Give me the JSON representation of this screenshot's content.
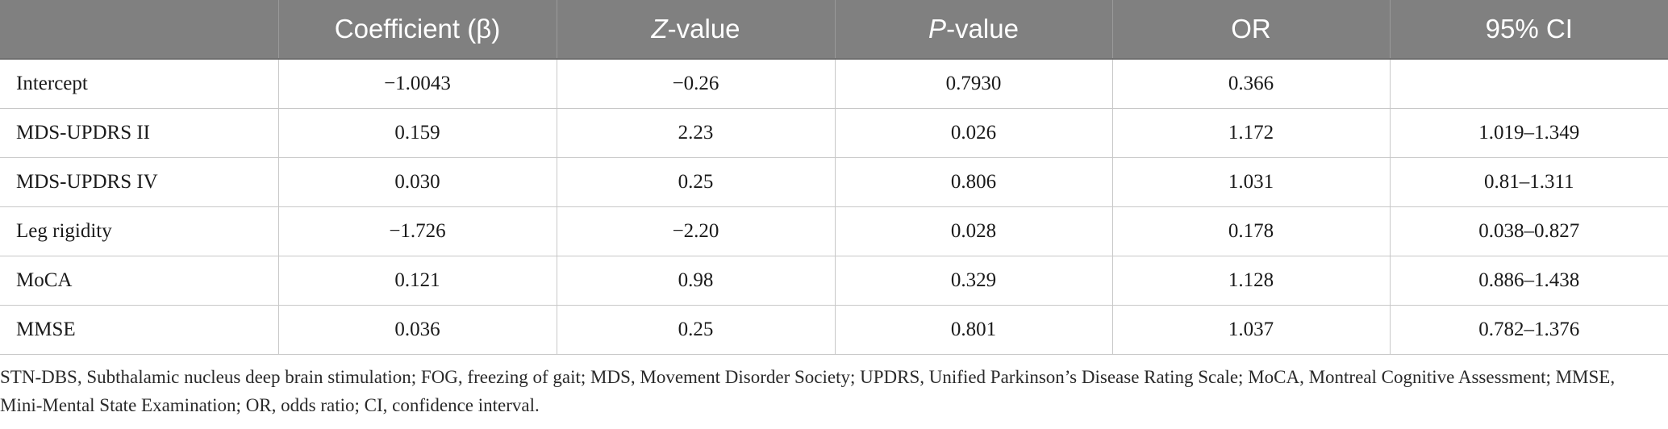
{
  "table": {
    "headers": [
      {
        "pre": "Coefficient (β)",
        "ital": "",
        "post": ""
      },
      {
        "pre": "",
        "ital": "Z",
        "post": "-value"
      },
      {
        "pre": "",
        "ital": "P",
        "post": "-value"
      },
      {
        "pre": "OR",
        "ital": "",
        "post": ""
      },
      {
        "pre": "95% CI",
        "ital": "",
        "post": ""
      }
    ],
    "rows": [
      [
        "Intercept",
        "−1.0043",
        "−0.26",
        "0.7930",
        "0.366",
        ""
      ],
      [
        "MDS-UPDRS II",
        "0.159",
        "2.23",
        "0.026",
        "1.172",
        "1.019–1.349"
      ],
      [
        "MDS-UPDRS IV",
        "0.030",
        "0.25",
        "0.806",
        "1.031",
        "0.81–1.311"
      ],
      [
        "Leg rigidity",
        "−1.726",
        "−2.20",
        "0.028",
        "0.178",
        "0.038–0.827"
      ],
      [
        "MoCA",
        "0.121",
        "0.98",
        "0.329",
        "1.128",
        "0.886–1.438"
      ],
      [
        "MMSE",
        "0.036",
        "0.25",
        "0.801",
        "1.037",
        "0.782–1.376"
      ]
    ]
  },
  "footnote": "STN-DBS, Subthalamic nucleus deep brain stimulation; FOG, freezing of gait; MDS, Movement Disorder Society; UPDRS, Unified Parkinson’s Disease Rating Scale; MoCA, Montreal Cognitive Assessment; MMSE, Mini-Mental State Examination; OR, odds ratio; CI, confidence interval.",
  "colors": {
    "header_bg": "#808080",
    "header_text": "#ffffff",
    "grid_line": "#c8c8c8"
  }
}
